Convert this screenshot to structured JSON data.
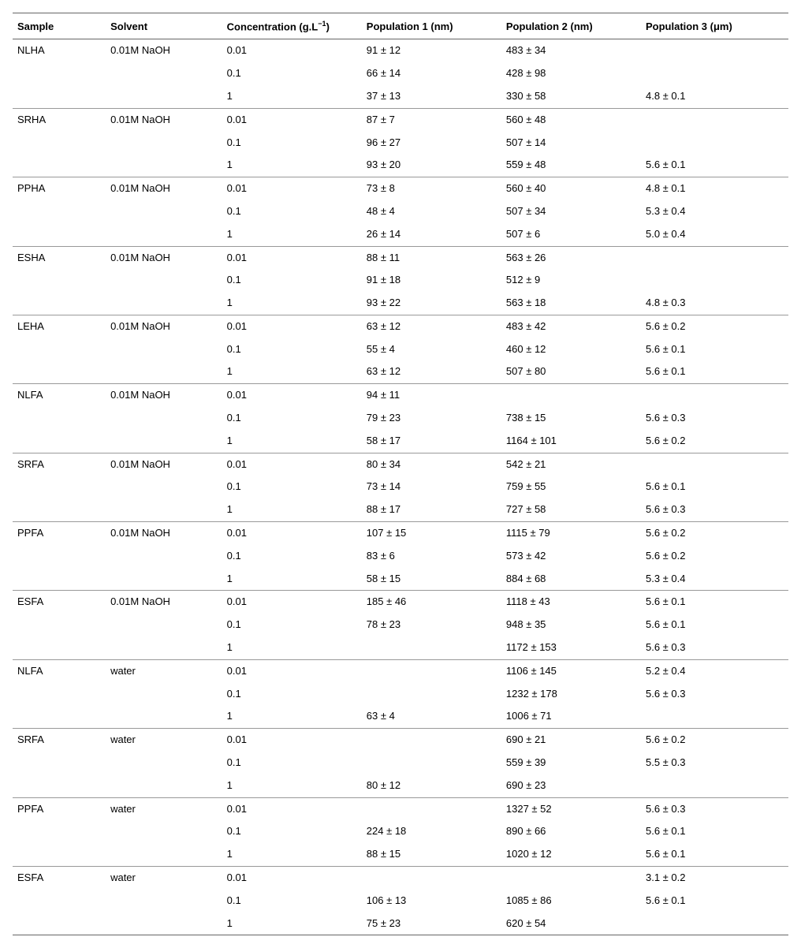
{
  "table": {
    "headers": {
      "sample": "Sample",
      "solvent": "Solvent",
      "concentration_html": "Concentration (g.L<sup>−1</sup>)",
      "pop1": "Population 1 (nm)",
      "pop2": "Population 2 (nm)",
      "pop3_html": "Population 3 (μm)"
    },
    "groups": [
      {
        "sample": "NLHA",
        "solvent": "0.01M NaOH",
        "rows": [
          {
            "conc": "0.01",
            "p1": "91 ± 12",
            "p2": "483 ± 34",
            "p3": ""
          },
          {
            "conc": "0.1",
            "p1": "66 ± 14",
            "p2": "428 ± 98",
            "p3": ""
          },
          {
            "conc": "1",
            "p1": "37 ± 13",
            "p2": "330 ± 58",
            "p3": "4.8 ± 0.1"
          }
        ]
      },
      {
        "sample": "SRHA",
        "solvent": "0.01M NaOH",
        "rows": [
          {
            "conc": "0.01",
            "p1": "87 ± 7",
            "p2": "560 ± 48",
            "p3": ""
          },
          {
            "conc": "0.1",
            "p1": "96 ± 27",
            "p2": "507 ± 14",
            "p3": ""
          },
          {
            "conc": "1",
            "p1": "93 ± 20",
            "p2": "559 ± 48",
            "p3": "5.6 ± 0.1"
          }
        ]
      },
      {
        "sample": "PPHA",
        "solvent": "0.01M NaOH",
        "rows": [
          {
            "conc": "0.01",
            "p1": "73 ± 8",
            "p2": "560 ± 40",
            "p3": "4.8 ± 0.1"
          },
          {
            "conc": "0.1",
            "p1": "48 ± 4",
            "p2": "507 ± 34",
            "p3": "5.3 ± 0.4"
          },
          {
            "conc": "1",
            "p1": "26 ± 14",
            "p2": "507 ± 6",
            "p3": "5.0 ± 0.4"
          }
        ]
      },
      {
        "sample": "ESHA",
        "solvent": "0.01M NaOH",
        "rows": [
          {
            "conc": "0.01",
            "p1": "88 ± 11",
            "p2": "563 ± 26",
            "p3": ""
          },
          {
            "conc": "0.1",
            "p1": "91 ± 18",
            "p2": "512 ± 9",
            "p3": ""
          },
          {
            "conc": "1",
            "p1": "93 ± 22",
            "p2": "563 ± 18",
            "p3": "4.8 ± 0.3"
          }
        ]
      },
      {
        "sample": "LEHA",
        "solvent": "0.01M NaOH",
        "rows": [
          {
            "conc": "0.01",
            "p1": "63 ± 12",
            "p2": "483 ± 42",
            "p3": "5.6 ± 0.2"
          },
          {
            "conc": "0.1",
            "p1": "55 ± 4",
            "p2": "460 ± 12",
            "p3": "5.6 ± 0.1"
          },
          {
            "conc": "1",
            "p1": "63 ± 12",
            "p2": "507 ± 80",
            "p3": "5.6 ± 0.1"
          }
        ]
      },
      {
        "sample": "NLFA",
        "solvent": "0.01M NaOH",
        "rows": [
          {
            "conc": "0.01",
            "p1": "94 ± 11",
            "p2": "",
            "p3": ""
          },
          {
            "conc": "0.1",
            "p1": "79 ± 23",
            "p2": "738 ± 15",
            "p3": "5.6 ± 0.3"
          },
          {
            "conc": "1",
            "p1": "58 ± 17",
            "p2": "1164 ± 101",
            "p3": "5.6 ± 0.2"
          }
        ]
      },
      {
        "sample": "SRFA",
        "solvent": "0.01M NaOH",
        "rows": [
          {
            "conc": "0.01",
            "p1": "80 ± 34",
            "p2": "542 ± 21",
            "p3": ""
          },
          {
            "conc": "0.1",
            "p1": "73 ± 14",
            "p2": "759 ± 55",
            "p3": "5.6 ± 0.1"
          },
          {
            "conc": "1",
            "p1": "88 ± 17",
            "p2": "727 ± 58",
            "p3": "5.6 ± 0.3"
          }
        ]
      },
      {
        "sample": "PPFA",
        "solvent": "0.01M NaOH",
        "rows": [
          {
            "conc": "0.01",
            "p1": "107 ± 15",
            "p2": "1115 ± 79",
            "p3": "5.6 ± 0.2"
          },
          {
            "conc": "0.1",
            "p1": "83 ± 6",
            "p2": "573 ± 42",
            "p3": "5.6 ± 0.2"
          },
          {
            "conc": "1",
            "p1": "58 ± 15",
            "p2": "884 ± 68",
            "p3": "5.3 ± 0.4"
          }
        ]
      },
      {
        "sample": "ESFA",
        "solvent": "0.01M NaOH",
        "rows": [
          {
            "conc": "0.01",
            "p1": "185 ± 46",
            "p2": "1118 ± 43",
            "p3": "5.6 ± 0.1"
          },
          {
            "conc": "0.1",
            "p1": "78 ± 23",
            "p2": "948 ± 35",
            "p3": "5.6 ± 0.1"
          },
          {
            "conc": "1",
            "p1": "",
            "p2": "1172 ± 153",
            "p3": "5.6 ± 0.3"
          }
        ]
      },
      {
        "sample": "NLFA",
        "solvent": "water",
        "rows": [
          {
            "conc": "0.01",
            "p1": "",
            "p2": "1106 ± 145",
            "p3": "5.2 ± 0.4"
          },
          {
            "conc": "0.1",
            "p1": "",
            "p2": "1232 ± 178",
            "p3": "5.6 ± 0.3"
          },
          {
            "conc": "1",
            "p1": "63 ± 4",
            "p2": "1006 ± 71",
            "p3": ""
          }
        ]
      },
      {
        "sample": "SRFA",
        "solvent": "water",
        "rows": [
          {
            "conc": "0.01",
            "p1": "",
            "p2": "690 ± 21",
            "p3": "5.6 ± 0.2"
          },
          {
            "conc": "0.1",
            "p1": "",
            "p2": "559 ± 39",
            "p3": "5.5 ± 0.3"
          },
          {
            "conc": "1",
            "p1": "80 ± 12",
            "p2": "690 ± 23",
            "p3": ""
          }
        ]
      },
      {
        "sample": "PPFA",
        "solvent": "water",
        "rows": [
          {
            "conc": "0.01",
            "p1": "",
            "p2": "1327 ± 52",
            "p3": "5.6 ± 0.3"
          },
          {
            "conc": "0.1",
            "p1": "224 ± 18",
            "p2": "890 ± 66",
            "p3": "5.6 ± 0.1"
          },
          {
            "conc": "1",
            "p1": "88 ± 15",
            "p2": "1020 ± 12",
            "p3": "5.6 ± 0.1"
          }
        ]
      },
      {
        "sample": "ESFA",
        "solvent": "water",
        "rows": [
          {
            "conc": "0.01",
            "p1": "",
            "p2": "",
            "p3": "3.1 ± 0.2"
          },
          {
            "conc": "0.1",
            "p1": "106 ± 13",
            "p2": "1085 ± 86",
            "p3": "5.6 ± 0.1"
          },
          {
            "conc": "1",
            "p1": "75 ± 23",
            "p2": "620 ± 54",
            "p3": ""
          }
        ]
      }
    ]
  }
}
